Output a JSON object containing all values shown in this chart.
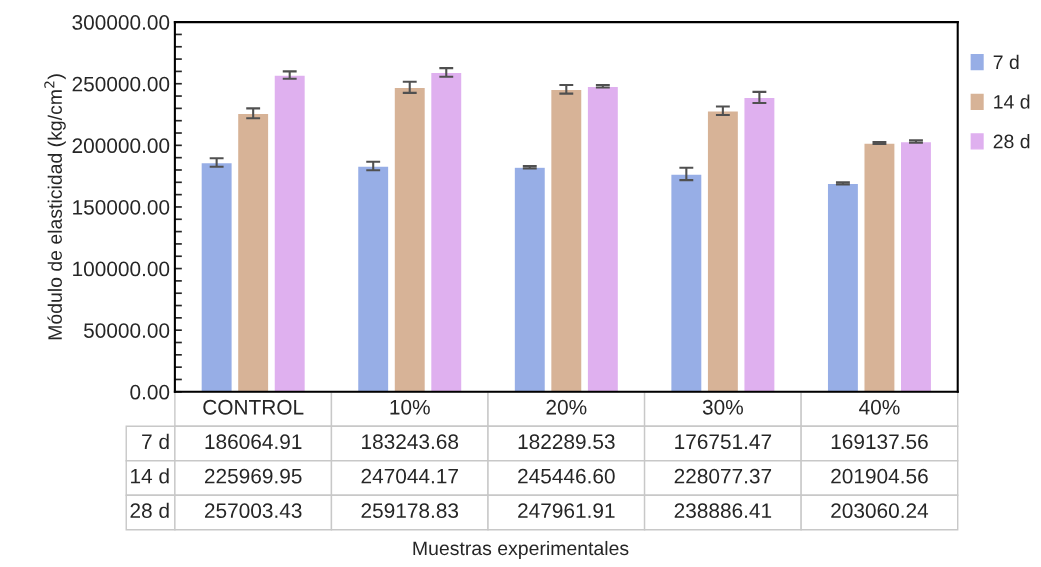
{
  "chart_data": {
    "type": "bar",
    "annotations": [
      "Muestras experimentales"
    ],
    "ylabel": "Módulo de elasticidad (kg/cm$^{2}$)",
    "categories": [
      "CONTROL",
      "10%",
      "20%",
      "30%",
      "40%"
    ],
    "series": [
      {
        "name": "7 d",
        "color": "#97aee6",
        "values": [
          186064.91,
          183243.68,
          182289.53,
          176751.47,
          169137.56
        ],
        "errors": [
          3500,
          3500,
          1000,
          5000,
          800
        ],
        "value_labels": [
          "186064.91",
          "183243.68",
          "182289.53",
          "176751.47",
          "169137.56"
        ]
      },
      {
        "name": "14 d",
        "color": "#d7b397",
        "values": [
          225969.95,
          247044.17,
          245446.6,
          228077.37,
          201904.56
        ],
        "errors": [
          4000,
          4500,
          3500,
          3500,
          800
        ],
        "value_labels": [
          "225969.95",
          "247044.17",
          "245446.60",
          "228077.37",
          "201904.56"
        ]
      },
      {
        "name": "28 d",
        "color": "#dfb0ef",
        "values": [
          257003.43,
          259178.83,
          247961.91,
          238886.41,
          203060.24
        ],
        "errors": [
          3000,
          3500,
          1000,
          4500,
          1000
        ],
        "value_labels": [
          "257003.43",
          "259178.83",
          "247961.91",
          "238886.41",
          "203060.24"
        ]
      }
    ],
    "ylim": [
      0,
      300000
    ],
    "yticks": [
      {
        "value": 0,
        "label": "0.00"
      },
      {
        "value": 10000,
        "label": null
      },
      {
        "value": 20000,
        "label": null
      },
      {
        "value": 30000,
        "label": null
      },
      {
        "value": 40000,
        "label": null
      },
      {
        "value": 50000,
        "label": "50000.00"
      },
      {
        "value": 60000,
        "label": null
      },
      {
        "value": 70000,
        "label": null
      },
      {
        "value": 80000,
        "label": null
      },
      {
        "value": 90000,
        "label": null
      },
      {
        "value": 100000,
        "label": "100000.00"
      },
      {
        "value": 110000,
        "label": null
      },
      {
        "value": 120000,
        "label": null
      },
      {
        "value": 130000,
        "label": null
      },
      {
        "value": 140000,
        "label": null
      },
      {
        "value": 150000,
        "label": "150000.00"
      },
      {
        "value": 160000,
        "label": null
      },
      {
        "value": 170000,
        "label": null
      },
      {
        "value": 180000,
        "label": null
      },
      {
        "value": 190000,
        "label": null
      },
      {
        "value": 200000,
        "label": "200000.00"
      },
      {
        "value": 210000,
        "label": null
      },
      {
        "value": 220000,
        "label": null
      },
      {
        "value": 230000,
        "label": null
      },
      {
        "value": 240000,
        "label": null
      },
      {
        "value": 250000,
        "label": "250000.00"
      },
      {
        "value": 260000,
        "label": null
      },
      {
        "value": 270000,
        "label": null
      },
      {
        "value": 280000,
        "label": null
      },
      {
        "value": 290000,
        "label": null
      },
      {
        "value": 300000,
        "label": "300000.00"
      }
    ],
    "legend": "right",
    "grid": false
  }
}
